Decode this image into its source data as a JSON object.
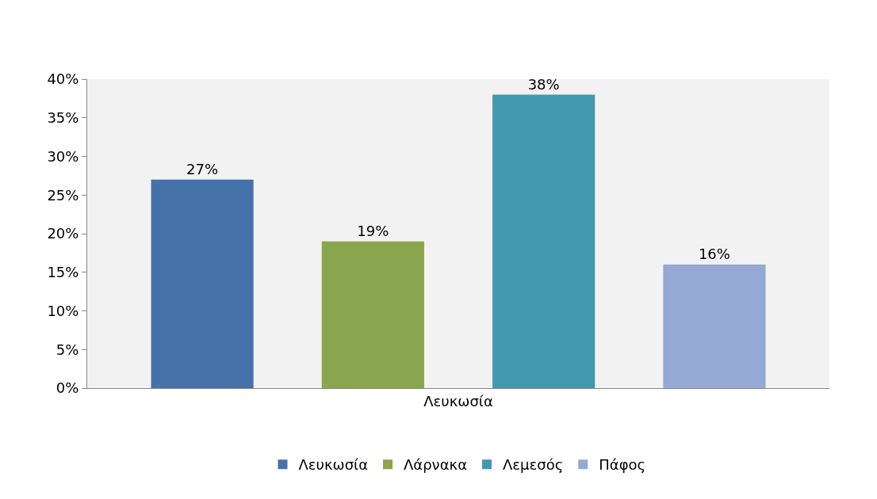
{
  "chart_data": {
    "type": "bar",
    "categories": [
      "Λευκωσία"
    ],
    "series": [
      {
        "name": "Λευκωσία",
        "color": "#4672aa",
        "values": [
          27
        ],
        "value_labels": [
          "27%"
        ]
      },
      {
        "name": "Λάρνακα",
        "color": "#89a54e",
        "values": [
          19
        ],
        "value_labels": [
          "19%"
        ]
      },
      {
        "name": "Λεμεσός",
        "color": "#4198af",
        "values": [
          38
        ],
        "value_labels": [
          "38%"
        ]
      },
      {
        "name": "Πάφος",
        "color": "#94a9d3",
        "values": [
          16
        ],
        "value_labels": [
          "16%"
        ]
      }
    ],
    "ylim": [
      0,
      40
    ],
    "yticks": [
      {
        "value": 0,
        "label": "0%"
      },
      {
        "value": 5,
        "label": "5%"
      },
      {
        "value": 10,
        "label": "10%"
      },
      {
        "value": 15,
        "label": "15%"
      },
      {
        "value": 20,
        "label": "20%"
      },
      {
        "value": 25,
        "label": "25%"
      },
      {
        "value": 30,
        "label": "30%"
      },
      {
        "value": 35,
        "label": "35%"
      },
      {
        "value": 40,
        "label": "40%"
      }
    ],
    "legend": "bottom"
  }
}
